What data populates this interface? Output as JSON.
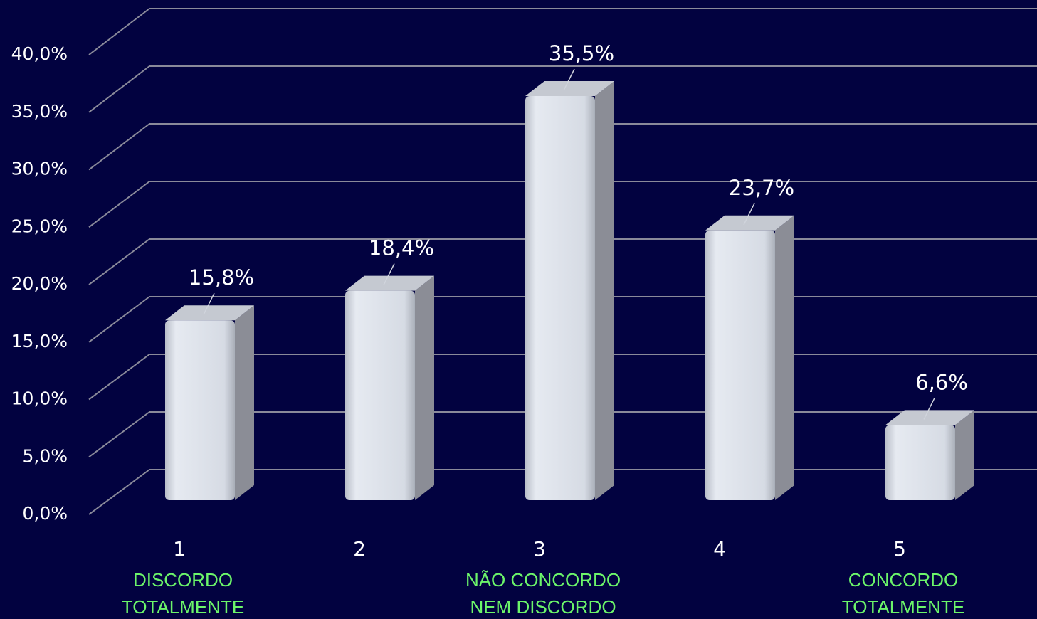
{
  "chart_data": {
    "type": "bar3d",
    "categories": [
      "1",
      "2",
      "3",
      "4",
      "5"
    ],
    "category_notes": [
      [
        "DISCORDO",
        "TOTALMENTE"
      ],
      null,
      [
        "NÃO CONCORDO",
        "NEM DISCORDO"
      ],
      null,
      [
        "CONCORDO",
        "TOTALMENTE"
      ]
    ],
    "values": [
      15.8,
      18.4,
      35.5,
      23.7,
      6.6
    ],
    "value_labels": [
      "15,8%",
      "18,4%",
      "35,5%",
      "23,7%",
      "6,6%"
    ],
    "ylim": [
      0,
      40
    ],
    "yticks": [
      {
        "value": 0,
        "label": "0,0%"
      },
      {
        "value": 5,
        "label": "5,0%"
      },
      {
        "value": 10,
        "label": "10,0%"
      },
      {
        "value": 15,
        "label": "15,0%"
      },
      {
        "value": 20,
        "label": "20,0%"
      },
      {
        "value": 25,
        "label": "25,0%"
      },
      {
        "value": 30,
        "label": "30,0%"
      },
      {
        "value": 35,
        "label": "35,0%"
      },
      {
        "value": 40,
        "label": "40,0%"
      }
    ],
    "grid": true,
    "color": "#d9dee7"
  }
}
